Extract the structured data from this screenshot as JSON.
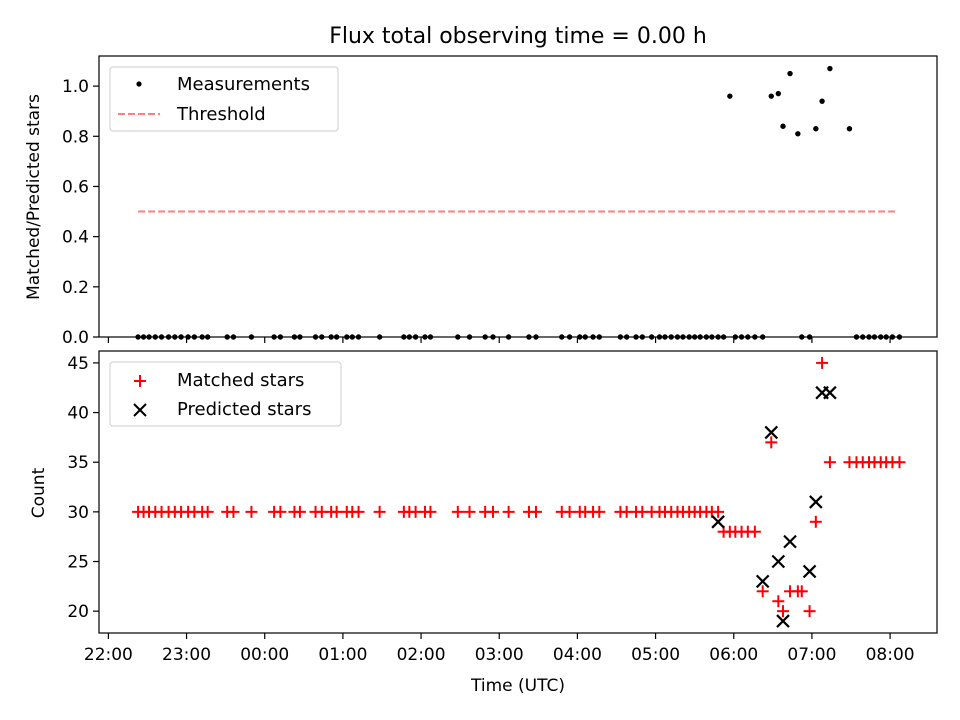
{
  "chart_data": [
    {
      "type": "scatter",
      "title": "Flux total observing time = 0.00 h",
      "xlabel": "",
      "ylabel": "Matched/Predicted stars",
      "ylim": [
        0,
        1.12
      ],
      "yticks": [
        0.0,
        0.2,
        0.4,
        0.6,
        0.8,
        1.0
      ],
      "xlim_hours": [
        21.88,
        32.6
      ],
      "xticks": [
        "22:00",
        "23:00",
        "00:00",
        "01:00",
        "02:00",
        "03:00",
        "04:00",
        "05:00",
        "06:00",
        "07:00",
        "08:00"
      ],
      "xtick_hours": [
        22,
        23,
        24,
        25,
        26,
        27,
        28,
        29,
        30,
        31,
        32
      ],
      "legend": {
        "placement": "top-left",
        "entries": [
          "Measurements",
          "Threshold"
        ]
      },
      "threshold": {
        "name": "Threshold",
        "value": 0.5,
        "x_range_hours": [
          22.38,
          32.1
        ],
        "color": "#ff7f7f"
      },
      "measurements": {
        "name": "Measurements",
        "color": "#000000",
        "x_hours": [
          22.38,
          22.45,
          22.52,
          22.6,
          22.68,
          22.77,
          22.85,
          22.93,
          23.02,
          23.1,
          23.2,
          23.27,
          23.52,
          23.6,
          23.83,
          24.12,
          24.2,
          24.38,
          24.45,
          24.65,
          24.73,
          24.85,
          24.92,
          25.05,
          25.12,
          25.2,
          25.47,
          25.78,
          25.85,
          25.93,
          26.05,
          26.12,
          26.47,
          26.62,
          26.82,
          26.92,
          27.12,
          27.38,
          27.47,
          27.8,
          27.9,
          28.03,
          28.1,
          28.2,
          28.28,
          28.55,
          28.63,
          28.75,
          28.83,
          28.95,
          29.05,
          29.12,
          29.2,
          29.28,
          29.35,
          29.43,
          29.5,
          29.57,
          29.65,
          29.72,
          29.8,
          29.87,
          29.95,
          30.02,
          30.1,
          30.18,
          30.27,
          30.37,
          30.48,
          30.57,
          30.63,
          30.72,
          30.82,
          30.87,
          30.97,
          31.05,
          31.13,
          31.23,
          31.48,
          31.57,
          31.65,
          31.73,
          31.8,
          31.88,
          31.95,
          32.03,
          32.12
        ],
        "y": [
          0,
          0,
          0,
          0,
          0,
          0,
          0,
          0,
          0,
          0,
          0,
          0,
          0,
          0,
          0,
          0,
          0,
          0,
          0,
          0,
          0,
          0,
          0,
          0,
          0,
          0,
          0,
          0,
          0,
          0,
          0,
          0,
          0,
          0,
          0,
          0,
          0,
          0,
          0,
          0,
          0,
          0,
          0,
          0,
          0,
          0,
          0,
          0,
          0,
          0,
          0,
          0,
          0,
          0,
          0,
          0,
          0,
          0,
          0,
          0,
          0,
          0,
          0.96,
          0,
          0,
          0,
          0,
          0,
          0.96,
          0.97,
          0.84,
          1.05,
          0.81,
          0,
          0,
          0.83,
          0.94,
          1.07,
          0.83,
          0,
          0,
          0,
          0,
          0,
          0,
          0,
          0
        ]
      }
    },
    {
      "type": "scatter",
      "title": "",
      "xlabel": "Time (UTC)",
      "ylabel": "Count",
      "ylim": [
        17.8,
        46.2
      ],
      "yticks": [
        20,
        25,
        30,
        35,
        40,
        45
      ],
      "xlim_hours": [
        21.88,
        32.6
      ],
      "xticks": [
        "22:00",
        "23:00",
        "00:00",
        "01:00",
        "02:00",
        "03:00",
        "04:00",
        "05:00",
        "06:00",
        "07:00",
        "08:00"
      ],
      "xtick_hours": [
        22,
        23,
        24,
        25,
        26,
        27,
        28,
        29,
        30,
        31,
        32
      ],
      "legend": {
        "placement": "top-left",
        "entries": [
          "Matched stars",
          "Predicted stars"
        ]
      },
      "series": [
        {
          "name": "Matched stars",
          "marker": "plus",
          "color": "#ff0000",
          "x_hours": [
            22.38,
            22.45,
            22.52,
            22.6,
            22.68,
            22.77,
            22.85,
            22.93,
            23.02,
            23.1,
            23.2,
            23.27,
            23.52,
            23.6,
            23.83,
            24.12,
            24.2,
            24.38,
            24.45,
            24.65,
            24.73,
            24.85,
            24.92,
            25.05,
            25.12,
            25.2,
            25.47,
            25.78,
            25.85,
            25.93,
            26.05,
            26.12,
            26.47,
            26.62,
            26.82,
            26.92,
            27.12,
            27.38,
            27.47,
            27.8,
            27.9,
            28.03,
            28.1,
            28.2,
            28.28,
            28.55,
            28.63,
            28.75,
            28.83,
            28.95,
            29.05,
            29.12,
            29.2,
            29.28,
            29.35,
            29.43,
            29.5,
            29.57,
            29.65,
            29.72,
            29.8,
            29.87,
            29.95,
            30.02,
            30.1,
            30.18,
            30.27,
            30.37,
            30.48,
            30.57,
            30.63,
            30.72,
            30.82,
            30.87,
            30.97,
            31.05,
            31.13,
            31.23,
            31.48,
            31.57,
            31.65,
            31.73,
            31.8,
            31.88,
            31.95,
            32.03,
            32.12
          ],
          "y": [
            30,
            30,
            30,
            30,
            30,
            30,
            30,
            30,
            30,
            30,
            30,
            30,
            30,
            30,
            30,
            30,
            30,
            30,
            30,
            30,
            30,
            30,
            30,
            30,
            30,
            30,
            30,
            30,
            30,
            30,
            30,
            30,
            30,
            30,
            30,
            30,
            30,
            30,
            30,
            30,
            30,
            30,
            30,
            30,
            30,
            30,
            30,
            30,
            30,
            30,
            30,
            30,
            30,
            30,
            30,
            30,
            30,
            30,
            30,
            30,
            30,
            28,
            28,
            28,
            28,
            28,
            28,
            22,
            37,
            21,
            20,
            22,
            22,
            22,
            20,
            29,
            45,
            35,
            35,
            35,
            35,
            35,
            35,
            35,
            35,
            35,
            35
          ]
        },
        {
          "name": "Predicted stars",
          "marker": "x",
          "color": "#000000",
          "x_hours": [
            29.8,
            30.37,
            30.48,
            30.57,
            30.63,
            30.72,
            30.97,
            31.05,
            31.13,
            31.23
          ],
          "y": [
            29,
            23,
            38,
            25,
            19,
            27,
            24,
            31,
            42,
            42
          ]
        }
      ]
    }
  ]
}
